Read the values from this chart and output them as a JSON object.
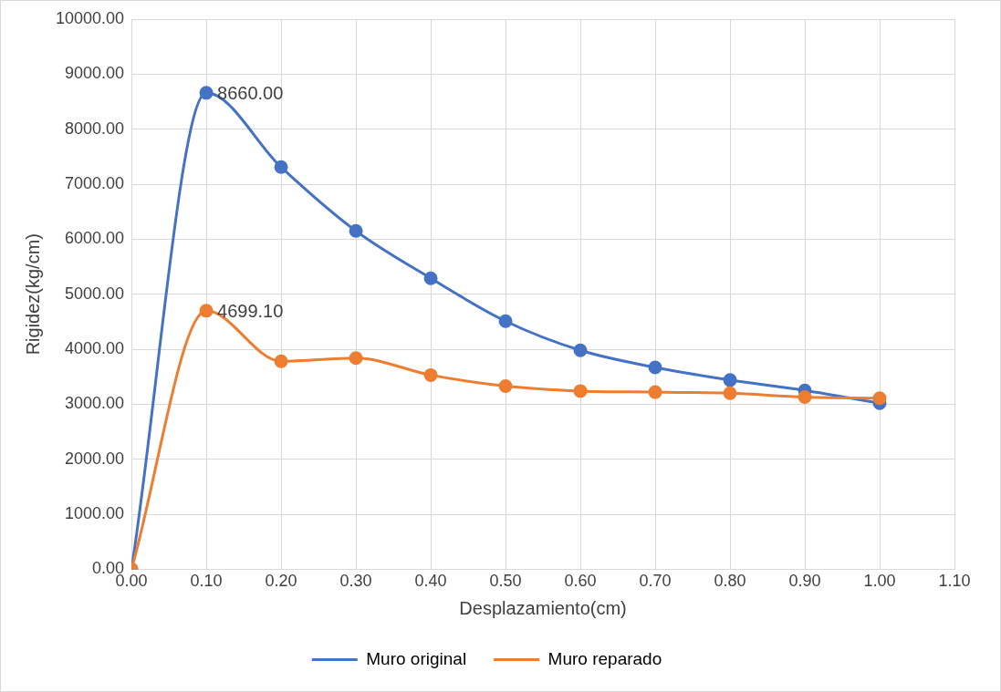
{
  "chart_data": {
    "type": "line",
    "xlabel": "Desplazamiento(cm)",
    "ylabel": "Rigidez(kg/cm)",
    "x": [
      0,
      0.1,
      0.2,
      0.3,
      0.4,
      0.5,
      0.6,
      0.7,
      0.8,
      0.9,
      1.0
    ],
    "series": [
      {
        "name": "Muro original",
        "color": "#4472c4",
        "values": [
          0,
          8660,
          7310,
          6150,
          5290,
          4510,
          3980,
          3670,
          3440,
          3250,
          3020
        ],
        "value_labels": [
          null,
          "8660.00",
          null,
          null,
          null,
          null,
          null,
          null,
          null,
          null,
          null
        ]
      },
      {
        "name": "Muro reparado",
        "color": "#ed7d31",
        "values": [
          0,
          4699.1,
          3780,
          3840,
          3530,
          3330,
          3240,
          3220,
          3200,
          3130,
          3110
        ],
        "value_labels": [
          null,
          "4699.10",
          null,
          null,
          null,
          null,
          null,
          null,
          null,
          null,
          null
        ]
      }
    ],
    "xlim": [
      0,
      1.1
    ],
    "xticks": [
      {
        "value": 0,
        "label": "0.00"
      },
      {
        "value": 0.1,
        "label": "0.10"
      },
      {
        "value": 0.2,
        "label": "0.20"
      },
      {
        "value": 0.3,
        "label": "0.30"
      },
      {
        "value": 0.4,
        "label": "0.40"
      },
      {
        "value": 0.5,
        "label": "0.50"
      },
      {
        "value": 0.6,
        "label": "0.60"
      },
      {
        "value": 0.7,
        "label": "0.70"
      },
      {
        "value": 0.8,
        "label": "0.80"
      },
      {
        "value": 0.9,
        "label": "0.90"
      },
      {
        "value": 1.0,
        "label": "1.00"
      },
      {
        "value": 1.1,
        "label": "1.10"
      }
    ],
    "ylim": [
      0,
      10000
    ],
    "yticks": [
      {
        "value": 0,
        "label": "0.00"
      },
      {
        "value": 1000,
        "label": "1000.00"
      },
      {
        "value": 2000,
        "label": "2000.00"
      },
      {
        "value": 3000,
        "label": "3000.00"
      },
      {
        "value": 4000,
        "label": "4000.00"
      },
      {
        "value": 5000,
        "label": "5000.00"
      },
      {
        "value": 6000,
        "label": "6000.00"
      },
      {
        "value": 7000,
        "label": "7000.00"
      },
      {
        "value": 8000,
        "label": "8000.00"
      },
      {
        "value": 9000,
        "label": "9000.00"
      },
      {
        "value": 10000,
        "label": "10000.00"
      }
    ],
    "grid": true,
    "legend": "bottom",
    "marker": "circle",
    "line_style": "solid"
  }
}
